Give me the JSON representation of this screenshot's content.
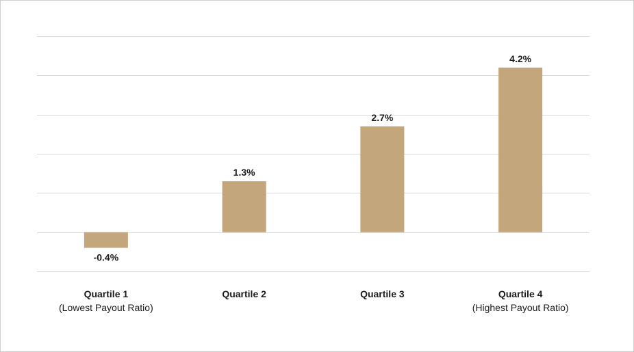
{
  "chart_data": {
    "type": "bar",
    "categories": [
      "Quartile 1",
      "Quartile 2",
      "Quartile 3",
      "Quartile 4"
    ],
    "category_sublabels": [
      "(Lowest Payout Ratio)",
      "",
      "",
      "(Highest Payout Ratio)"
    ],
    "values": [
      -0.4,
      1.3,
      2.7,
      4.2
    ],
    "value_labels": [
      "-0.4%",
      "1.3%",
      "2.7%",
      "4.2%"
    ],
    "title": "",
    "xlabel": "",
    "ylabel": "",
    "ylim": [
      -1,
      5
    ],
    "y_ticks": [
      -1,
      0,
      1,
      2,
      3,
      4,
      5
    ],
    "grid": true,
    "bar_color": "#c4a67c"
  }
}
